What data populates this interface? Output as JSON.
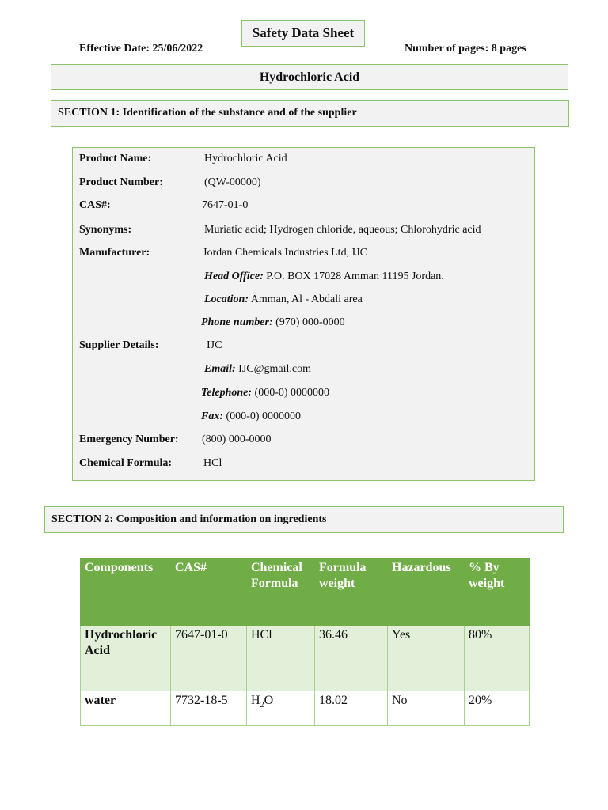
{
  "header": {
    "title": "Safety Data Sheet",
    "effective_date": "Effective Date: 25/06/2022",
    "num_pages": "Number of pages: 8 pages",
    "substance": "Hydrochloric Acid"
  },
  "section1": {
    "heading": "SECTION 1: Identification of the substance and of the supplier",
    "rows": [
      {
        "label": "Product Name:",
        "value": "Hydrochloric Acid"
      },
      {
        "label": "Product Number:",
        "value": "(QW-00000)"
      },
      {
        "label": "CAS#:",
        "value": "7647-01-0"
      },
      {
        "label": "Synonyms:",
        "value": "Muriatic acid; Hydrogen chloride, aqueous; Chlorohydric acid"
      },
      {
        "label": "Manufacturer:",
        "value": "Jordan Chemicals Industries Ltd, IJC"
      },
      {
        "label": "",
        "key": "Head Office:",
        "value": " P.O. BOX 17028 Amman 11195 Jordan."
      },
      {
        "label": "",
        "key": "Location:",
        "value": " Amman, Al - Abdali area"
      },
      {
        "label": "",
        "key": "Phone number:",
        "value": " (970) 000-0000"
      },
      {
        "label": "Supplier Details:",
        "value": "IJC"
      },
      {
        "label": "",
        "key": "Email:",
        "value": " IJC@gmail.com"
      },
      {
        "label": "",
        "key": "Telephone:",
        "value": " (000-0) 0000000"
      },
      {
        "label": "",
        "key": "Fax:",
        "value": " (000-0) 0000000"
      },
      {
        "label": "Emergency Number:",
        "value": "(800) 000-0000"
      },
      {
        "label": "Chemical Formula:",
        "value": "HCl"
      }
    ]
  },
  "section2": {
    "heading": "SECTION 2: Composition and information on ingredients",
    "columns": [
      "Components",
      "CAS#",
      "Chemical Formula",
      "Formula weight",
      "Hazardous",
      "% By weight"
    ],
    "rows": [
      {
        "component": "Hydrochloric Acid",
        "cas": "7647-01-0",
        "formula": "HCl",
        "weight": "36.46",
        "hazardous": "Yes",
        "percent": "80%"
      },
      {
        "component": "water",
        "cas": "7732-18-5",
        "formula_base": "H",
        "formula_sub": "2",
        "formula_end": "O",
        "weight": "18.02",
        "hazardous": "No",
        "percent": "20%"
      }
    ]
  },
  "colors": {
    "border_green": "#8cc46a",
    "header_green": "#70ad47",
    "row_green": "#e2efd9",
    "box_grey": "#f2f2f2"
  }
}
